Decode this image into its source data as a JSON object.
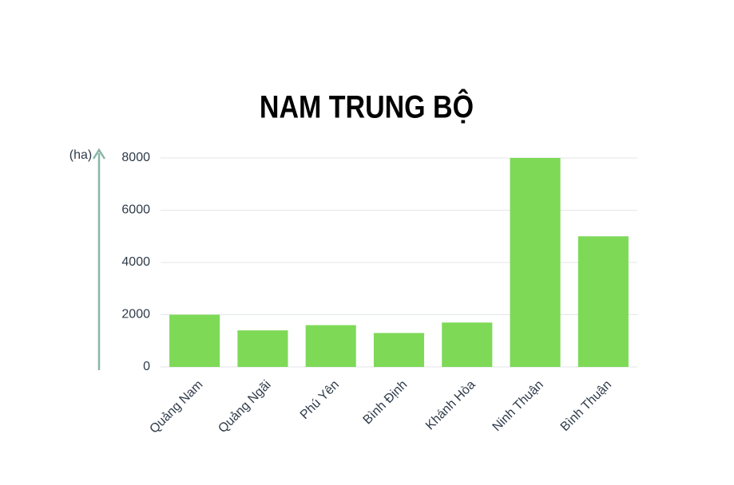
{
  "chart_data": {
    "type": "bar",
    "title": "NAM TRUNG BỘ",
    "y_label": "(ha)",
    "categories": [
      "Quảng Nam",
      "Quảng Ngãi",
      "Phú Yên",
      "Bình Định",
      "Khánh Hòa",
      "Ninh Thuận",
      "Bình Thuận"
    ],
    "values": [
      2000,
      1400,
      1600,
      1300,
      1700,
      8000,
      5000
    ],
    "color": "#7ed957",
    "ylim": [
      0,
      8000
    ],
    "yticks": [
      0,
      2000,
      4000,
      6000,
      8000
    ],
    "grid": true
  }
}
